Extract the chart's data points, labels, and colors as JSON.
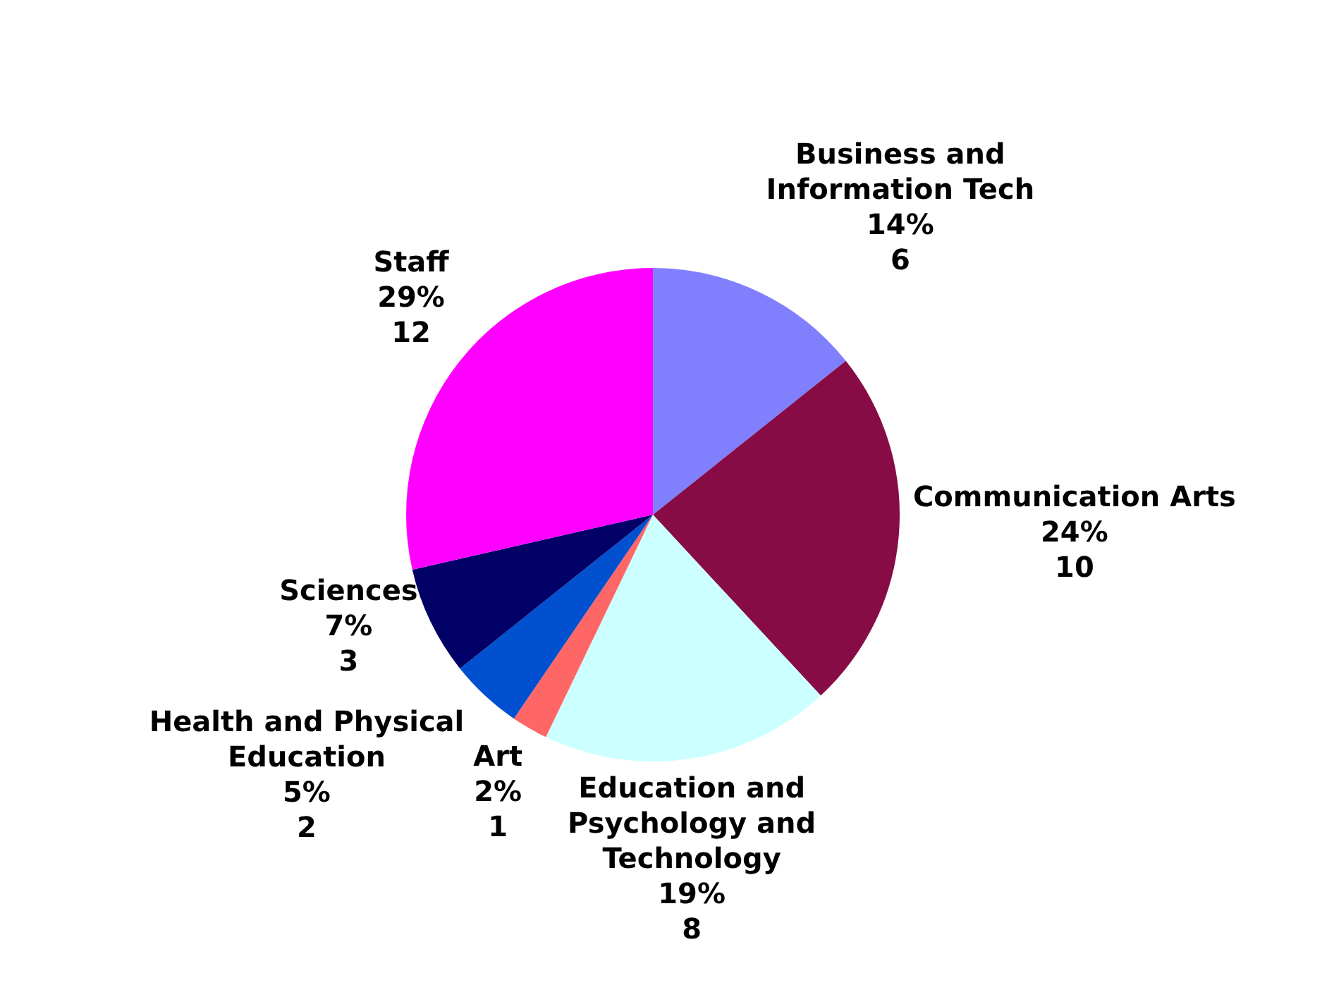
{
  "chart_data": {
    "type": "pie",
    "categories": [
      "Business and Information Tech",
      "Communication Arts",
      "Education and Psychology and Technology",
      "Art",
      "Health and Physical Education",
      "Sciences",
      "Staff"
    ],
    "values": [
      6,
      10,
      8,
      1,
      2,
      3,
      12
    ],
    "colors": [
      "#8080ff",
      "#870c45",
      "#ccffff",
      "#ff6666",
      "#0050d0",
      "#000066",
      "#ff00ff"
    ],
    "value_labels": [
      "14%\n6",
      "24%\n10",
      "19%\n8",
      "2%\n1",
      "5%\n2",
      "7%\n3",
      "29%\n12"
    ],
    "legend": false
  }
}
